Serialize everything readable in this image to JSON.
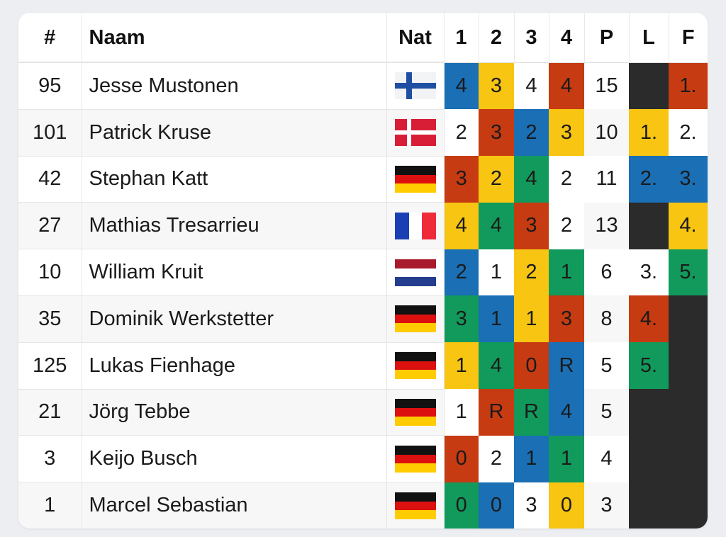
{
  "columns": [
    "#",
    "Naam",
    "Nat",
    "1",
    "2",
    "3",
    "4",
    "P",
    "L",
    "F"
  ],
  "colors": {
    "blue": "#1a6fb5",
    "yellow": "#f7c512",
    "red": "#c63b12",
    "green": "#119a5c",
    "dark": "#2b2b2b",
    "white": "#ffffff"
  },
  "rows": [
    {
      "num": "95",
      "name": "Jesse Mustonen",
      "flag": "fi-flag-icon",
      "heats": [
        "4",
        "3",
        "4",
        "4"
      ],
      "heat_colors": [
        "blue",
        "yellow",
        "white",
        "red"
      ],
      "points": "15",
      "l": "",
      "l_color": "dark",
      "f": "1.",
      "f_color": "red"
    },
    {
      "num": "101",
      "name": "Patrick Kruse",
      "flag": "dk-flag-icon",
      "heats": [
        "2",
        "3",
        "2",
        "3"
      ],
      "heat_colors": [
        "white",
        "red",
        "blue",
        "yellow"
      ],
      "points": "10",
      "l": "1.",
      "l_color": "yellow",
      "f": "2.",
      "f_color": "white"
    },
    {
      "num": "42",
      "name": "Stephan Katt",
      "flag": "de-flag-icon",
      "heats": [
        "3",
        "2",
        "4",
        "2"
      ],
      "heat_colors": [
        "red",
        "yellow",
        "green",
        "white"
      ],
      "points": "11",
      "l": "2.",
      "l_color": "blue",
      "f": "3.",
      "f_color": "blue"
    },
    {
      "num": "27",
      "name": "Mathias Tresarrieu",
      "flag": "fr-flag-icon",
      "heats": [
        "4",
        "4",
        "3",
        "2"
      ],
      "heat_colors": [
        "yellow",
        "green",
        "red",
        "white"
      ],
      "points": "13",
      "l": "",
      "l_color": "dark",
      "f": "4.",
      "f_color": "yellow"
    },
    {
      "num": "10",
      "name": "William Kruit",
      "flag": "nl-flag-icon",
      "heats": [
        "2",
        "1",
        "2",
        "1"
      ],
      "heat_colors": [
        "blue",
        "white",
        "yellow",
        "green"
      ],
      "points": "6",
      "l": "3.",
      "l_color": "white",
      "f": "5.",
      "f_color": "green"
    },
    {
      "num": "35",
      "name": "Dominik Werkstetter",
      "flag": "de-flag-icon",
      "heats": [
        "3",
        "1",
        "1",
        "3"
      ],
      "heat_colors": [
        "green",
        "blue",
        "yellow",
        "red"
      ],
      "points": "8",
      "l": "4.",
      "l_color": "red",
      "f": "",
      "f_color": "dark"
    },
    {
      "num": "125",
      "name": "Lukas Fienhage",
      "flag": "de-flag-icon",
      "heats": [
        "1",
        "4",
        "0",
        "R"
      ],
      "heat_colors": [
        "yellow",
        "green",
        "red",
        "blue"
      ],
      "points": "5",
      "l": "5.",
      "l_color": "green",
      "f": "",
      "f_color": "dark"
    },
    {
      "num": "21",
      "name": "Jörg Tebbe",
      "flag": "de-flag-icon",
      "heats": [
        "1",
        "R",
        "R",
        "4"
      ],
      "heat_colors": [
        "white",
        "red",
        "green",
        "blue"
      ],
      "points": "5",
      "l": "",
      "l_color": "dark",
      "f": "",
      "f_color": "dark"
    },
    {
      "num": "3",
      "name": "Keijo Busch",
      "flag": "de-flag-icon",
      "heats": [
        "0",
        "2",
        "1",
        "1"
      ],
      "heat_colors": [
        "red",
        "white",
        "blue",
        "green"
      ],
      "points": "4",
      "l": "",
      "l_color": "dark",
      "f": "",
      "f_color": "dark"
    },
    {
      "num": "1",
      "name": "Marcel Sebastian",
      "flag": "de-flag-icon",
      "heats": [
        "0",
        "0",
        "3",
        "0"
      ],
      "heat_colors": [
        "green",
        "blue",
        "white",
        "yellow"
      ],
      "points": "3",
      "l": "",
      "l_color": "dark",
      "f": "",
      "f_color": "dark"
    }
  ]
}
